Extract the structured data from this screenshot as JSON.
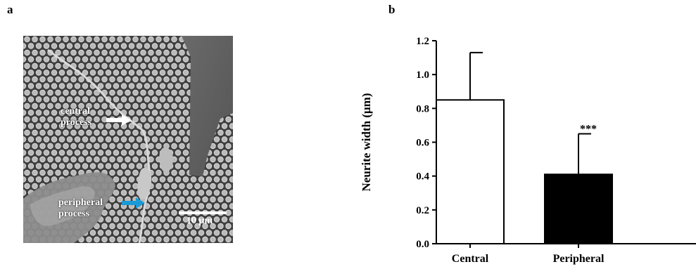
{
  "panels": {
    "a_label": "a",
    "b_label": "b"
  },
  "micrograph": {
    "annotation_central_line1": "central",
    "annotation_central_line2": "process",
    "annotation_peripheral_line1": "peripheral",
    "annotation_peripheral_line2": "process",
    "scale_bar_label": "10 μm",
    "arrow_central_color": "#ffffff",
    "arrow_peripheral_color": "#1a9ad6"
  },
  "chart_data": {
    "type": "bar",
    "title": "",
    "xlabel": "",
    "ylabel": "Neurite width (μm)",
    "ylim": [
      0,
      1.2
    ],
    "yticks": [
      "0.0",
      "0.2",
      "0.4",
      "0.6",
      "0.8",
      "1.0",
      "1.2"
    ],
    "categories": [
      "Central",
      "Peripheral"
    ],
    "values": [
      0.85,
      0.41
    ],
    "error_upper": [
      1.13,
      0.65
    ],
    "bar_fills": [
      "#ffffff",
      "#000000"
    ],
    "significance": [
      "",
      "***"
    ],
    "grid": false
  }
}
